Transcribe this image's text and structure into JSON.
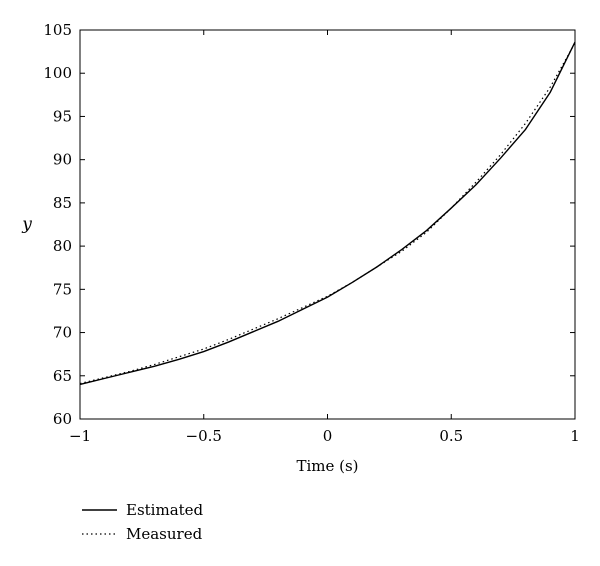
{
  "chart_data": {
    "type": "line",
    "title": "",
    "xlabel": "Time (s)",
    "ylabel": "y",
    "xlim": [
      -1,
      1
    ],
    "ylim": [
      60,
      105
    ],
    "xticks": [
      -1,
      -0.5,
      0,
      0.5,
      1
    ],
    "xtick_labels": [
      "−1",
      "−0.5",
      "0",
      "0.5",
      "1"
    ],
    "yticks": [
      60,
      65,
      70,
      75,
      80,
      85,
      90,
      95,
      100,
      105
    ],
    "ytick_labels": [
      "60",
      "65",
      "70",
      "75",
      "80",
      "85",
      "90",
      "95",
      "100",
      "105"
    ],
    "grid": false,
    "legend_position": "bottom-left",
    "series": [
      {
        "name": "Estimated",
        "style": "solid",
        "color": "#000000",
        "x": [
          -1,
          -0.9,
          -0.8,
          -0.7,
          -0.6,
          -0.5,
          -0.4,
          -0.3,
          -0.2,
          -0.1,
          0,
          0.1,
          0.2,
          0.3,
          0.4,
          0.5,
          0.6,
          0.7,
          0.8,
          0.9,
          1
        ],
        "y": [
          64.0,
          64.7,
          65.4,
          66.1,
          66.9,
          67.8,
          68.9,
          70.1,
          71.3,
          72.7,
          74.1,
          75.8,
          77.6,
          79.6,
          81.8,
          84.4,
          87.1,
          90.2,
          93.5,
          97.8,
          103.6
        ]
      },
      {
        "name": "Measured",
        "style": "dotted",
        "color": "#000000",
        "x": [
          -1,
          -0.9,
          -0.8,
          -0.7,
          -0.6,
          -0.5,
          -0.4,
          -0.3,
          -0.2,
          -0.1,
          0,
          0.1,
          0.2,
          0.3,
          0.4,
          0.5,
          0.6,
          0.7,
          0.8,
          0.9,
          1
        ],
        "y": [
          64.1,
          64.8,
          65.5,
          66.3,
          67.2,
          68.1,
          69.2,
          70.4,
          71.6,
          72.9,
          74.2,
          75.8,
          77.6,
          79.4,
          81.6,
          84.4,
          87.4,
          90.6,
          94.2,
          98.4,
          103.5
        ]
      }
    ]
  }
}
